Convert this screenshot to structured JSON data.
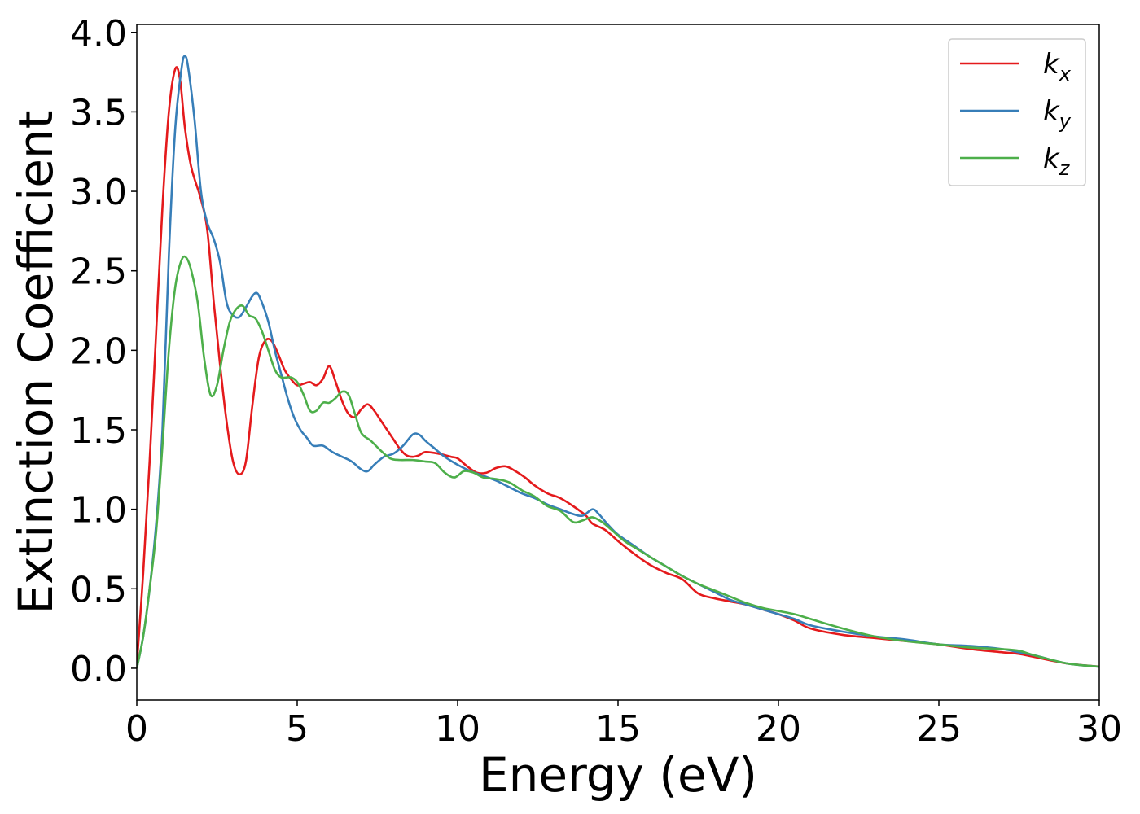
{
  "chart_data": {
    "type": "line",
    "xlabel": "Energy (eV)",
    "ylabel": "Extinction Coefficient",
    "xlim": [
      0,
      30
    ],
    "ylim": [
      -0.2,
      4.05
    ],
    "xticks": [
      0,
      5,
      10,
      15,
      20,
      25,
      30
    ],
    "yticks": [
      0.0,
      0.5,
      1.0,
      1.5,
      2.0,
      2.5,
      3.0,
      3.5,
      4.0
    ],
    "grid": false,
    "legend_position": "top-right",
    "series": [
      {
        "name": "k",
        "subscript": "x",
        "color": "#e41a1c",
        "points": [
          [
            0,
            0.02
          ],
          [
            0.2,
            0.6
          ],
          [
            0.4,
            1.3
          ],
          [
            0.6,
            2.1
          ],
          [
            0.8,
            2.9
          ],
          [
            1.0,
            3.5
          ],
          [
            1.2,
            3.77
          ],
          [
            1.35,
            3.7
          ],
          [
            1.5,
            3.4
          ],
          [
            1.7,
            3.15
          ],
          [
            2.0,
            2.95
          ],
          [
            2.2,
            2.75
          ],
          [
            2.4,
            2.3
          ],
          [
            2.6,
            1.9
          ],
          [
            2.8,
            1.55
          ],
          [
            3.0,
            1.3
          ],
          [
            3.2,
            1.22
          ],
          [
            3.4,
            1.3
          ],
          [
            3.6,
            1.65
          ],
          [
            3.8,
            1.95
          ],
          [
            4.0,
            2.06
          ],
          [
            4.2,
            2.06
          ],
          [
            4.4,
            1.98
          ],
          [
            4.6,
            1.88
          ],
          [
            4.8,
            1.82
          ],
          [
            5.0,
            1.78
          ],
          [
            5.2,
            1.79
          ],
          [
            5.4,
            1.8
          ],
          [
            5.6,
            1.78
          ],
          [
            5.8,
            1.82
          ],
          [
            6.0,
            1.9
          ],
          [
            6.2,
            1.8
          ],
          [
            6.4,
            1.68
          ],
          [
            6.6,
            1.6
          ],
          [
            6.8,
            1.58
          ],
          [
            7.0,
            1.63
          ],
          [
            7.2,
            1.66
          ],
          [
            7.4,
            1.62
          ],
          [
            7.6,
            1.56
          ],
          [
            7.8,
            1.5
          ],
          [
            8.0,
            1.44
          ],
          [
            8.2,
            1.38
          ],
          [
            8.4,
            1.34
          ],
          [
            8.6,
            1.33
          ],
          [
            8.8,
            1.34
          ],
          [
            9.0,
            1.36
          ],
          [
            9.4,
            1.35
          ],
          [
            9.8,
            1.33
          ],
          [
            10.0,
            1.32
          ],
          [
            10.3,
            1.27
          ],
          [
            10.6,
            1.23
          ],
          [
            10.9,
            1.23
          ],
          [
            11.2,
            1.26
          ],
          [
            11.5,
            1.27
          ],
          [
            11.8,
            1.24
          ],
          [
            12.1,
            1.2
          ],
          [
            12.4,
            1.15
          ],
          [
            12.8,
            1.1
          ],
          [
            13.2,
            1.07
          ],
          [
            13.6,
            1.02
          ],
          [
            14.0,
            0.96
          ],
          [
            14.2,
            0.91
          ],
          [
            14.6,
            0.87
          ],
          [
            15.0,
            0.8
          ],
          [
            15.5,
            0.72
          ],
          [
            16.0,
            0.65
          ],
          [
            16.5,
            0.6
          ],
          [
            17.0,
            0.56
          ],
          [
            17.5,
            0.47
          ],
          [
            18.0,
            0.44
          ],
          [
            18.5,
            0.42
          ],
          [
            19.0,
            0.4
          ],
          [
            19.5,
            0.37
          ],
          [
            20.0,
            0.34
          ],
          [
            20.5,
            0.3
          ],
          [
            21.0,
            0.25
          ],
          [
            22.0,
            0.21
          ],
          [
            23.0,
            0.19
          ],
          [
            24.0,
            0.17
          ],
          [
            25.0,
            0.15
          ],
          [
            26.0,
            0.12
          ],
          [
            27.0,
            0.1
          ],
          [
            27.5,
            0.09
          ],
          [
            28.0,
            0.07
          ],
          [
            29.0,
            0.03
          ],
          [
            30.0,
            0.01
          ]
        ]
      },
      {
        "name": "k",
        "subscript": "y",
        "color": "#377eb8",
        "points": [
          [
            0,
            0.0
          ],
          [
            0.2,
            0.2
          ],
          [
            0.4,
            0.5
          ],
          [
            0.6,
            0.9
          ],
          [
            0.8,
            1.5
          ],
          [
            1.0,
            2.6
          ],
          [
            1.2,
            3.4
          ],
          [
            1.4,
            3.78
          ],
          [
            1.5,
            3.85
          ],
          [
            1.6,
            3.78
          ],
          [
            1.8,
            3.45
          ],
          [
            2.0,
            3.0
          ],
          [
            2.2,
            2.8
          ],
          [
            2.4,
            2.7
          ],
          [
            2.6,
            2.55
          ],
          [
            2.8,
            2.3
          ],
          [
            3.0,
            2.22
          ],
          [
            3.2,
            2.21
          ],
          [
            3.4,
            2.27
          ],
          [
            3.6,
            2.34
          ],
          [
            3.75,
            2.36
          ],
          [
            3.9,
            2.3
          ],
          [
            4.1,
            2.18
          ],
          [
            4.3,
            2.0
          ],
          [
            4.5,
            1.85
          ],
          [
            4.7,
            1.7
          ],
          [
            4.9,
            1.58
          ],
          [
            5.1,
            1.5
          ],
          [
            5.3,
            1.45
          ],
          [
            5.5,
            1.4
          ],
          [
            5.8,
            1.4
          ],
          [
            6.1,
            1.36
          ],
          [
            6.4,
            1.33
          ],
          [
            6.7,
            1.3
          ],
          [
            7.0,
            1.25
          ],
          [
            7.2,
            1.24
          ],
          [
            7.4,
            1.28
          ],
          [
            7.7,
            1.33
          ],
          [
            8.0,
            1.35
          ],
          [
            8.3,
            1.4
          ],
          [
            8.6,
            1.47
          ],
          [
            8.8,
            1.47
          ],
          [
            9.0,
            1.43
          ],
          [
            9.3,
            1.38
          ],
          [
            9.6,
            1.33
          ],
          [
            10.0,
            1.28
          ],
          [
            10.4,
            1.24
          ],
          [
            10.8,
            1.21
          ],
          [
            11.2,
            1.18
          ],
          [
            11.6,
            1.14
          ],
          [
            12.0,
            1.1
          ],
          [
            12.4,
            1.07
          ],
          [
            12.8,
            1.03
          ],
          [
            13.2,
            1.0
          ],
          [
            13.6,
            0.97
          ],
          [
            13.9,
            0.96
          ],
          [
            14.2,
            1.0
          ],
          [
            14.4,
            0.97
          ],
          [
            14.7,
            0.9
          ],
          [
            15.0,
            0.84
          ],
          [
            15.5,
            0.77
          ],
          [
            16.0,
            0.7
          ],
          [
            16.5,
            0.64
          ],
          [
            17.0,
            0.58
          ],
          [
            17.5,
            0.53
          ],
          [
            18.0,
            0.48
          ],
          [
            18.5,
            0.43
          ],
          [
            19.0,
            0.4
          ],
          [
            19.5,
            0.37
          ],
          [
            20.0,
            0.34
          ],
          [
            20.5,
            0.31
          ],
          [
            21.0,
            0.27
          ],
          [
            22.0,
            0.23
          ],
          [
            23.0,
            0.2
          ],
          [
            24.0,
            0.18
          ],
          [
            25.0,
            0.15
          ],
          [
            26.0,
            0.14
          ],
          [
            27.0,
            0.12
          ],
          [
            27.5,
            0.1
          ],
          [
            28.0,
            0.08
          ],
          [
            29.0,
            0.03
          ],
          [
            30.0,
            0.01
          ]
        ]
      },
      {
        "name": "k",
        "subscript": "z",
        "color": "#4daf4a",
        "points": [
          [
            0,
            0.0
          ],
          [
            0.2,
            0.2
          ],
          [
            0.4,
            0.5
          ],
          [
            0.6,
            0.85
          ],
          [
            0.8,
            1.4
          ],
          [
            1.0,
            2.0
          ],
          [
            1.2,
            2.4
          ],
          [
            1.4,
            2.57
          ],
          [
            1.55,
            2.58
          ],
          [
            1.7,
            2.5
          ],
          [
            1.9,
            2.3
          ],
          [
            2.1,
            1.95
          ],
          [
            2.3,
            1.72
          ],
          [
            2.5,
            1.78
          ],
          [
            2.7,
            2.0
          ],
          [
            2.9,
            2.18
          ],
          [
            3.1,
            2.26
          ],
          [
            3.3,
            2.28
          ],
          [
            3.5,
            2.22
          ],
          [
            3.7,
            2.2
          ],
          [
            3.9,
            2.12
          ],
          [
            4.1,
            2.0
          ],
          [
            4.3,
            1.88
          ],
          [
            4.5,
            1.83
          ],
          [
            4.8,
            1.83
          ],
          [
            5.0,
            1.8
          ],
          [
            5.2,
            1.72
          ],
          [
            5.4,
            1.62
          ],
          [
            5.6,
            1.62
          ],
          [
            5.8,
            1.67
          ],
          [
            6.0,
            1.67
          ],
          [
            6.2,
            1.7
          ],
          [
            6.4,
            1.74
          ],
          [
            6.6,
            1.72
          ],
          [
            6.8,
            1.6
          ],
          [
            7.0,
            1.48
          ],
          [
            7.3,
            1.43
          ],
          [
            7.6,
            1.37
          ],
          [
            7.9,
            1.32
          ],
          [
            8.2,
            1.31
          ],
          [
            8.6,
            1.31
          ],
          [
            9.0,
            1.3
          ],
          [
            9.3,
            1.29
          ],
          [
            9.6,
            1.23
          ],
          [
            9.9,
            1.2
          ],
          [
            10.2,
            1.24
          ],
          [
            10.5,
            1.23
          ],
          [
            10.8,
            1.2
          ],
          [
            11.2,
            1.19
          ],
          [
            11.6,
            1.17
          ],
          [
            12.0,
            1.12
          ],
          [
            12.4,
            1.08
          ],
          [
            12.8,
            1.02
          ],
          [
            13.2,
            0.99
          ],
          [
            13.6,
            0.92
          ],
          [
            13.9,
            0.93
          ],
          [
            14.2,
            0.95
          ],
          [
            14.5,
            0.92
          ],
          [
            14.8,
            0.87
          ],
          [
            15.2,
            0.8
          ],
          [
            15.6,
            0.75
          ],
          [
            16.0,
            0.7
          ],
          [
            16.5,
            0.64
          ],
          [
            17.0,
            0.58
          ],
          [
            17.5,
            0.53
          ],
          [
            18.0,
            0.49
          ],
          [
            18.5,
            0.45
          ],
          [
            19.0,
            0.41
          ],
          [
            19.5,
            0.38
          ],
          [
            20.0,
            0.36
          ],
          [
            20.5,
            0.34
          ],
          [
            21.0,
            0.31
          ],
          [
            22.0,
            0.25
          ],
          [
            23.0,
            0.2
          ],
          [
            24.0,
            0.17
          ],
          [
            25.0,
            0.15
          ],
          [
            26.0,
            0.13
          ],
          [
            27.0,
            0.12
          ],
          [
            27.5,
            0.11
          ],
          [
            28.0,
            0.08
          ],
          [
            29.0,
            0.03
          ],
          [
            30.0,
            0.01
          ]
        ]
      }
    ]
  }
}
